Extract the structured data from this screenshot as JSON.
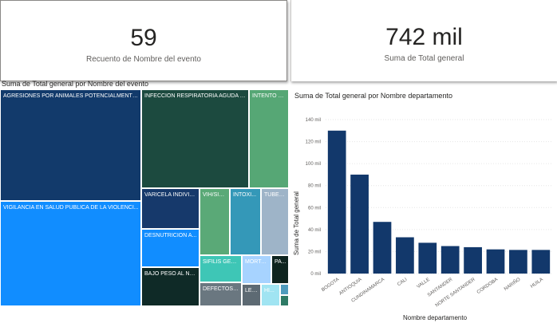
{
  "kpi_cards": [
    {
      "value": "59",
      "label": "Recuento de Nombre del evento"
    },
    {
      "value": "742 mil",
      "label": "Suma de Total general"
    }
  ],
  "treemap": {
    "title": "Suma de Total general por Nombre del evento",
    "tiles": [
      {
        "label": "AGRESIONES POR ANIMALES POTENCIALMENTE ...",
        "color": "#123a6b"
      },
      {
        "label": "VIGILANCIA EN SALUD PÚBLICA DE LA VIOLENCI...",
        "color": "#118dff"
      },
      {
        "label": "INFECCION RESPIRATORIA AGUDA G...",
        "color": "#1c4a3f"
      },
      {
        "label": "INTENTO D...",
        "color": "#56a775"
      },
      {
        "label": "VARICELA INDIVID...",
        "color": "#16396b"
      },
      {
        "label": "DESNUTRICIÓN A...",
        "color": "#118dff"
      },
      {
        "label": "BAJO PESO AL NA...",
        "color": "#0f2a27"
      },
      {
        "label": "VIH/SID...",
        "color": "#5aa977"
      },
      {
        "label": "INTOXI...",
        "color": "#3498b8"
      },
      {
        "label": "TUBER...",
        "color": "#9eb4c8"
      },
      {
        "label": "SIFILIS GEST...",
        "color": "#3ec6b6"
      },
      {
        "label": "MORTA...",
        "color": "#a7d3ff"
      },
      {
        "label": "PA...",
        "color": "#0e241f"
      },
      {
        "label": "DEFECTOS C...",
        "color": "#6a7780"
      },
      {
        "label": "LEP...",
        "color": "#5d6a73"
      },
      {
        "label": "HI...",
        "color": "#a0e4f2"
      },
      {
        "label": "",
        "color": "#4e9bbd"
      },
      {
        "label": "",
        "color": "#2e7a66"
      }
    ]
  },
  "chart_data": {
    "type": "bar",
    "title": "Suma de Total general por Nombre departamento",
    "xlabel": "Nombre departamento",
    "ylabel": "Suma de Total general",
    "categories": [
      "BOGOTA",
      "ANTIOQUIA",
      "CUNDINAMARCA",
      "CALI",
      "VALLE",
      "SANTANDER",
      "NORTE SANTANDER",
      "CORDOBA",
      "NARIÑO",
      "HUILA"
    ],
    "values": [
      130000,
      90000,
      47000,
      33000,
      28000,
      25000,
      24000,
      22000,
      21500,
      21500
    ],
    "yticks": [
      0,
      20000,
      40000,
      60000,
      80000,
      100000,
      120000,
      140000
    ],
    "ytick_labels": [
      "0 mil",
      "20 mil",
      "40 mil",
      "60 mil",
      "80 mil",
      "100 mil",
      "120 mil",
      "140 mil"
    ],
    "ylim": [
      0,
      140000
    ],
    "bar_color": "#12386b",
    "grid": true,
    "legend": "none"
  }
}
